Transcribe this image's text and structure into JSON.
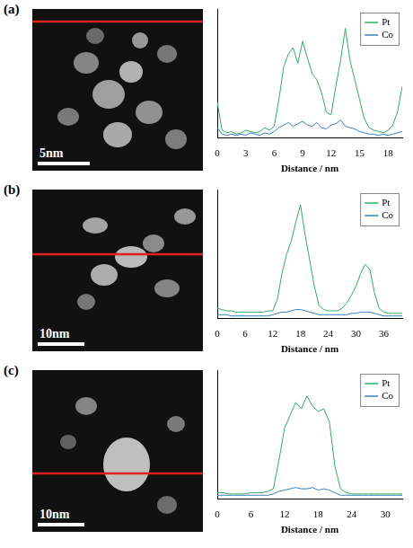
{
  "chart_data": [
    {
      "type": "line",
      "panel_label": "(a)",
      "image_scale_bar_label": "5nm",
      "x_label": "Distance / nm",
      "x": [
        0,
        0.5,
        1,
        1.5,
        2,
        2.5,
        3,
        3.5,
        4,
        4.5,
        5,
        5.5,
        6,
        6.5,
        7,
        7.5,
        8,
        8.5,
        9,
        9.5,
        10,
        10.5,
        11,
        11.5,
        12,
        12.5,
        13,
        13.5,
        14,
        14.5,
        15,
        15.5,
        16,
        16.5,
        17,
        17.5,
        18,
        18.5,
        19,
        19.5
      ],
      "series": [
        {
          "name": "Pt",
          "color": "#2fae63",
          "values": [
            28,
            6,
            4,
            5,
            3,
            4,
            6,
            5,
            4,
            5,
            8,
            6,
            9,
            30,
            55,
            65,
            70,
            58,
            75,
            62,
            50,
            45,
            35,
            20,
            18,
            40,
            60,
            85,
            60,
            45,
            30,
            15,
            8,
            6,
            5,
            4,
            6,
            10,
            20,
            40
          ]
        },
        {
          "name": "Co",
          "color": "#3a7fc1",
          "values": [
            8,
            3,
            2,
            3,
            2,
            3,
            2,
            4,
            3,
            2,
            4,
            3,
            5,
            8,
            10,
            12,
            9,
            11,
            13,
            10,
            9,
            12,
            8,
            7,
            10,
            11,
            14,
            9,
            8,
            7,
            5,
            4,
            3,
            3,
            2,
            3,
            2,
            3,
            4,
            5
          ]
        }
      ],
      "xlim": [
        0,
        19.5
      ],
      "xticks": [
        0,
        3,
        6,
        9,
        12,
        15,
        18
      ],
      "ylim": [
        0,
        100
      ],
      "grid": false,
      "legend": "upper right",
      "tick_labels": "x"
    },
    {
      "type": "line",
      "panel_label": "(b)",
      "image_scale_bar_label": "10nm",
      "x_label": "Distance / nm",
      "x": [
        0,
        1,
        2,
        3,
        4,
        5,
        6,
        7,
        8,
        9,
        10,
        11,
        12,
        13,
        14,
        15,
        16,
        17,
        18,
        19,
        20,
        21,
        22,
        23,
        24,
        25,
        26,
        27,
        28,
        29,
        30,
        31,
        32,
        33,
        34,
        35,
        36,
        37,
        38,
        39,
        40
      ],
      "series": [
        {
          "name": "Pt",
          "color": "#2fae63",
          "values": [
            8,
            7,
            6,
            6,
            5,
            5,
            5,
            5,
            5,
            5,
            5,
            6,
            6,
            15,
            35,
            50,
            60,
            75,
            88,
            65,
            45,
            25,
            10,
            7,
            6,
            6,
            6,
            8,
            12,
            18,
            25,
            35,
            42,
            38,
            20,
            8,
            5,
            4,
            4,
            4,
            4
          ]
        },
        {
          "name": "Co",
          "color": "#3a7fc1",
          "values": [
            3,
            3,
            3,
            2,
            2,
            2,
            2,
            2,
            2,
            2,
            2,
            2,
            3,
            4,
            5,
            5,
            6,
            7,
            7,
            6,
            5,
            4,
            3,
            3,
            3,
            3,
            3,
            3,
            3,
            4,
            4,
            5,
            5,
            5,
            4,
            3,
            2,
            2,
            2,
            2,
            2
          ]
        }
      ],
      "xlim": [
        0,
        40
      ],
      "xticks": [
        0,
        6,
        12,
        18,
        24,
        30,
        36
      ],
      "ylim": [
        0,
        100
      ],
      "grid": false,
      "legend": "upper right",
      "tick_labels": "x"
    },
    {
      "type": "line",
      "panel_label": "(c)",
      "image_scale_bar_label": "10nm",
      "x_label": "Distance / nm",
      "x": [
        0,
        1,
        2,
        3,
        4,
        5,
        6,
        7,
        8,
        9,
        10,
        11,
        12,
        13,
        14,
        15,
        16,
        17,
        18,
        19,
        20,
        21,
        22,
        23,
        24,
        25,
        26,
        27,
        28,
        29,
        30,
        31,
        32,
        33
      ],
      "series": [
        {
          "name": "Pt",
          "color": "#2fae63",
          "values": [
            5,
            5,
            4,
            4,
            4,
            4,
            5,
            5,
            5,
            6,
            8,
            30,
            55,
            65,
            75,
            70,
            80,
            72,
            68,
            70,
            60,
            25,
            8,
            5,
            4,
            4,
            4,
            4,
            4,
            4,
            4,
            4,
            4,
            4
          ]
        },
        {
          "name": "Co",
          "color": "#3a7fc1",
          "values": [
            3,
            3,
            3,
            3,
            3,
            3,
            3,
            3,
            3,
            3,
            4,
            6,
            7,
            8,
            9,
            8,
            8,
            9,
            7,
            8,
            7,
            5,
            3,
            3,
            3,
            3,
            3,
            3,
            3,
            3,
            3,
            3,
            3,
            3
          ]
        }
      ],
      "xlim": [
        0,
        33
      ],
      "xticks": [
        0,
        6,
        12,
        18,
        24,
        30
      ],
      "ylim": [
        0,
        100
      ],
      "grid": false,
      "legend": "upper right",
      "tick_labels": "x"
    }
  ]
}
